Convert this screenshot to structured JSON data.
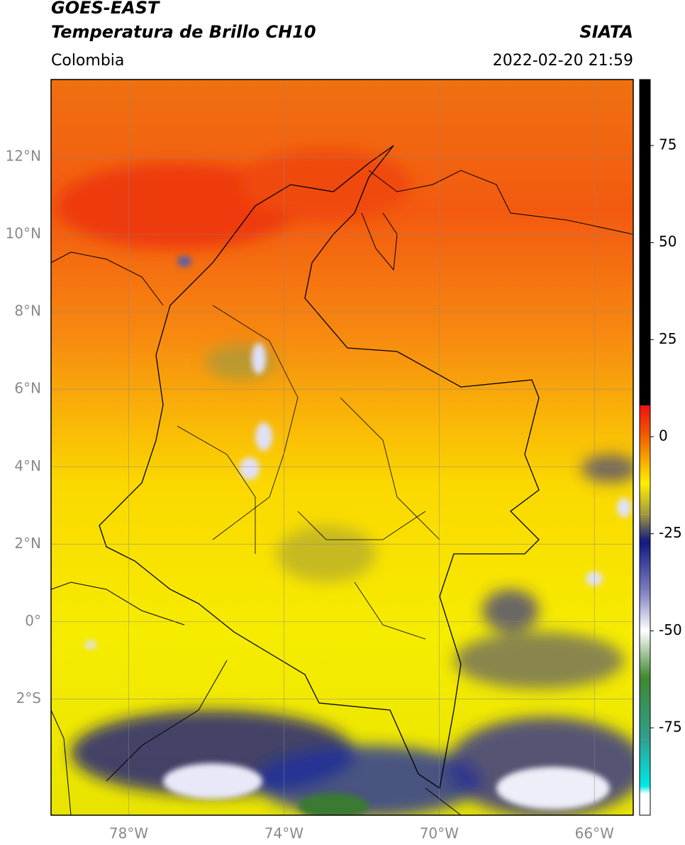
{
  "header": {
    "satellite": "GOES-EAST",
    "product": "Temperatura de Brillo CH10",
    "source": "SIATA",
    "region": "Colombia",
    "datetime": "2022-02-20 21:59"
  },
  "map": {
    "xlim": [
      -80,
      -65
    ],
    "ylim": [
      -5,
      14
    ],
    "xticks": [
      {
        "value": -78,
        "label": "78°W"
      },
      {
        "value": -74,
        "label": "74°W"
      },
      {
        "value": -70,
        "label": "70°W"
      },
      {
        "value": -66,
        "label": "66°W"
      }
    ],
    "yticks": [
      {
        "value": 12,
        "label": "12°N"
      },
      {
        "value": 10,
        "label": "10°N"
      },
      {
        "value": 8,
        "label": "8°N"
      },
      {
        "value": 6,
        "label": "6°N"
      },
      {
        "value": 4,
        "label": "4°N"
      },
      {
        "value": 2,
        "label": "2°N"
      },
      {
        "value": 0,
        "label": "0°"
      },
      {
        "value": -2,
        "label": "2°S"
      }
    ],
    "grid": true,
    "grid_color": "#888888"
  },
  "colorbar": {
    "lim": [
      -97.5,
      92
    ],
    "ticks": [
      75,
      50,
      25,
      0,
      -25,
      -50,
      -75
    ],
    "stops": [
      {
        "value": 92,
        "color": "#000000"
      },
      {
        "value": 8,
        "color": "#000000"
      },
      {
        "value": 8,
        "color": "#f01010"
      },
      {
        "value": 0,
        "color": "#f06000"
      },
      {
        "value": -12,
        "color": "#fff000"
      },
      {
        "value": -20,
        "color": "#a09840"
      },
      {
        "value": -27,
        "color": "#101880"
      },
      {
        "value": -40,
        "color": "#8080c0"
      },
      {
        "value": -50,
        "color": "#ffffff"
      },
      {
        "value": -62,
        "color": "#408830"
      },
      {
        "value": -78,
        "color": "#30a090"
      },
      {
        "value": -90,
        "color": "#00e8e8"
      },
      {
        "value": -92,
        "color": "#ffffff"
      },
      {
        "value": -97.5,
        "color": "#ffffff"
      }
    ]
  }
}
